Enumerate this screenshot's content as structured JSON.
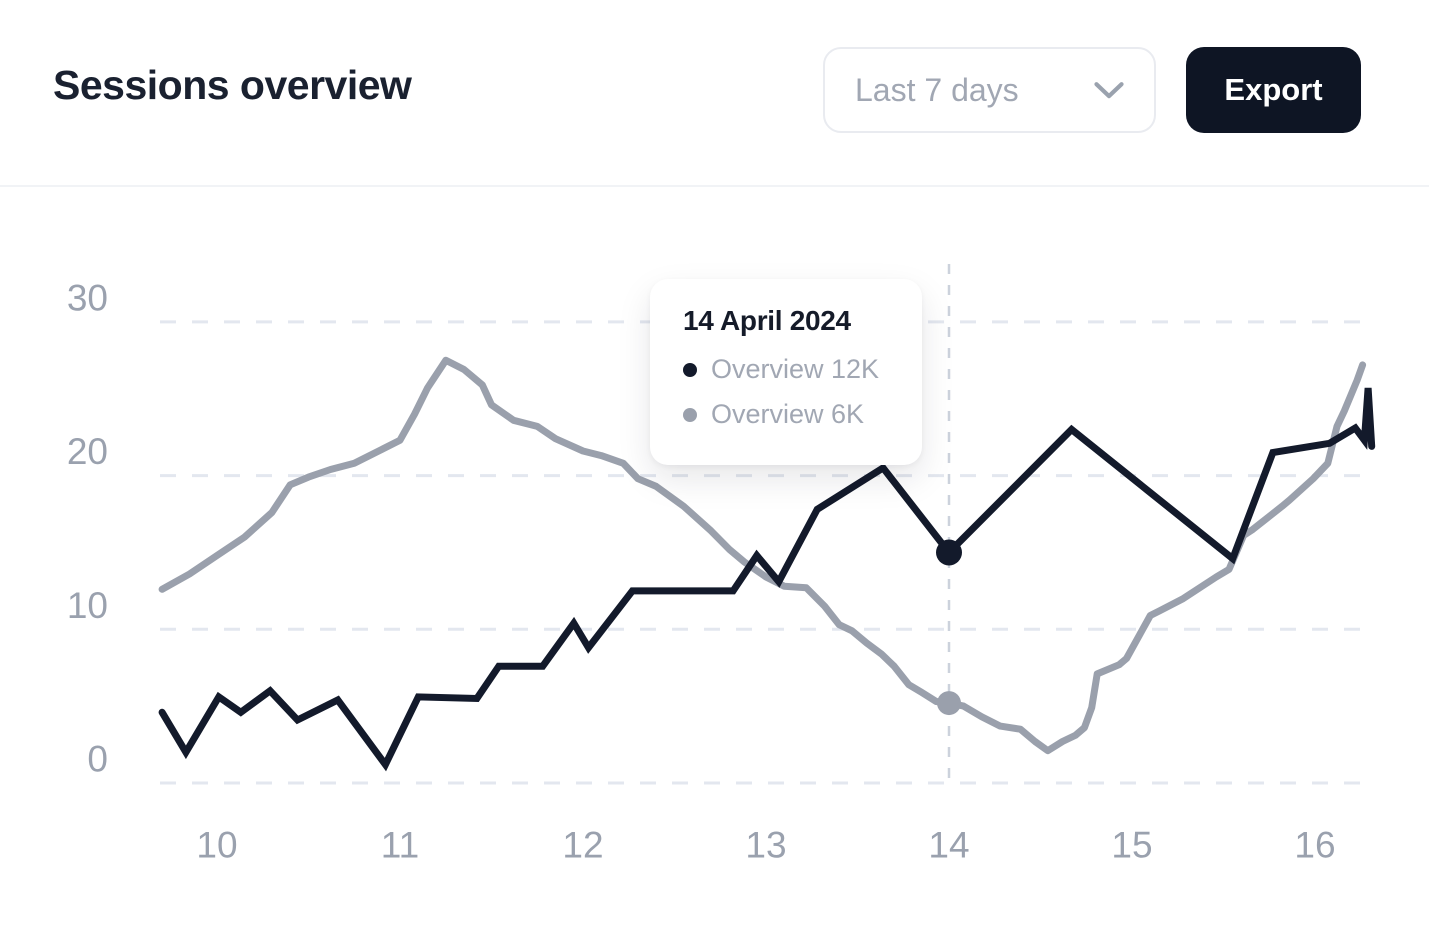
{
  "header": {
    "title": "Sessions overview",
    "range_selector": {
      "label": "Last 7 days"
    },
    "export_label": "Export"
  },
  "colors": {
    "title": "#1a2130",
    "dark-line": "#131a2b",
    "gray-line": "#9aa0ac",
    "gridline": "#e3e7ef",
    "axis-label": "#9aa1ae",
    "muted-text": "#a1a7b3",
    "export-bg": "#0e1524",
    "export-text": "#ffffff",
    "border": "#e9ebf0",
    "background": "#ffffff"
  },
  "chart_data": {
    "type": "line",
    "title": "Sessions overview",
    "xlabel": "",
    "ylabel": "",
    "grid": "horizontal-dashed",
    "x_axis": {
      "ticks": [
        10,
        11,
        12,
        13,
        14,
        15,
        16
      ],
      "range": [
        9.65,
        16.35
      ]
    },
    "y_axis": {
      "ticks": [
        0,
        10,
        20,
        30
      ],
      "range": [
        0,
        32
      ]
    },
    "legend": "none",
    "series": [
      {
        "name": "Overview 12K",
        "color": "#131a2b",
        "points": [
          [
            9.7,
            4.6
          ],
          [
            9.83,
            2.0
          ],
          [
            10.01,
            5.6
          ],
          [
            10.13,
            4.6
          ],
          [
            10.29,
            6.0
          ],
          [
            10.44,
            4.1
          ],
          [
            10.66,
            5.4
          ],
          [
            10.92,
            1.2
          ],
          [
            11.1,
            5.6
          ],
          [
            11.42,
            5.5
          ],
          [
            11.54,
            7.6
          ],
          [
            11.78,
            7.6
          ],
          [
            11.95,
            10.4
          ],
          [
            12.03,
            8.8
          ],
          [
            12.27,
            12.5
          ],
          [
            12.82,
            12.5
          ],
          [
            12.95,
            14.8
          ],
          [
            13.07,
            13.1
          ],
          [
            13.28,
            17.8
          ],
          [
            13.64,
            20.5
          ],
          [
            14.0,
            15.0
          ],
          [
            14.67,
            23.0
          ],
          [
            15.55,
            14.6
          ],
          [
            15.77,
            21.5
          ],
          [
            16.08,
            22.1
          ],
          [
            16.22,
            23.1
          ],
          [
            16.27,
            22.3
          ],
          [
            16.29,
            25.7
          ],
          [
            16.31,
            21.9
          ]
        ]
      },
      {
        "name": "Overview 6K",
        "color": "#9aa0ac",
        "points": [
          [
            9.7,
            12.6
          ],
          [
            9.85,
            13.6
          ],
          [
            10.0,
            14.8
          ],
          [
            10.15,
            16.0
          ],
          [
            10.3,
            17.6
          ],
          [
            10.4,
            19.4
          ],
          [
            10.5,
            19.9
          ],
          [
            10.62,
            20.4
          ],
          [
            10.75,
            20.8
          ],
          [
            10.9,
            21.7
          ],
          [
            11.0,
            22.3
          ],
          [
            11.08,
            24.0
          ],
          [
            11.15,
            25.7
          ],
          [
            11.25,
            27.5
          ],
          [
            11.35,
            26.9
          ],
          [
            11.45,
            25.9
          ],
          [
            11.5,
            24.6
          ],
          [
            11.62,
            23.6
          ],
          [
            11.75,
            23.2
          ],
          [
            11.85,
            22.4
          ],
          [
            12.0,
            21.6
          ],
          [
            12.1,
            21.3
          ],
          [
            12.22,
            20.8
          ],
          [
            12.3,
            19.8
          ],
          [
            12.4,
            19.3
          ],
          [
            12.55,
            18.0
          ],
          [
            12.7,
            16.4
          ],
          [
            12.8,
            15.2
          ],
          [
            12.88,
            14.4
          ],
          [
            13.0,
            13.4
          ],
          [
            13.1,
            12.8
          ],
          [
            13.22,
            12.7
          ],
          [
            13.32,
            11.5
          ],
          [
            13.4,
            10.3
          ],
          [
            13.47,
            9.9
          ],
          [
            13.55,
            9.1
          ],
          [
            13.63,
            8.4
          ],
          [
            13.7,
            7.6
          ],
          [
            13.78,
            6.4
          ],
          [
            13.85,
            5.9
          ],
          [
            13.93,
            5.3
          ],
          [
            14.0,
            5.2
          ],
          [
            14.08,
            5.0
          ],
          [
            14.18,
            4.3
          ],
          [
            14.28,
            3.7
          ],
          [
            14.39,
            3.5
          ],
          [
            14.47,
            2.7
          ],
          [
            14.54,
            2.1
          ],
          [
            14.62,
            2.7
          ],
          [
            14.69,
            3.1
          ],
          [
            14.74,
            3.6
          ],
          [
            14.78,
            4.9
          ],
          [
            14.81,
            7.1
          ],
          [
            14.93,
            7.7
          ],
          [
            14.97,
            8.1
          ],
          [
            15.1,
            10.9
          ],
          [
            15.15,
            11.2
          ],
          [
            15.28,
            12.0
          ],
          [
            15.46,
            13.4
          ],
          [
            15.53,
            13.9
          ],
          [
            15.61,
            16.1
          ],
          [
            15.66,
            16.5
          ],
          [
            15.82,
            18.0
          ],
          [
            15.86,
            18.4
          ],
          [
            15.99,
            19.8
          ],
          [
            16.07,
            20.8
          ],
          [
            16.12,
            23.2
          ],
          [
            16.16,
            24.2
          ],
          [
            16.23,
            26.2
          ],
          [
            16.26,
            27.2
          ]
        ]
      }
    ],
    "highlight": {
      "x": 14,
      "vline": true,
      "markers": [
        {
          "series_index": 0,
          "x": 14,
          "value": 15.0
        },
        {
          "series_index": 1,
          "x": 14,
          "value": 5.2
        }
      ]
    }
  },
  "tooltip": {
    "date": "14 April 2024",
    "rows": [
      {
        "label": "Overview 12K",
        "dot_color": "#131a2b"
      },
      {
        "label": "Overview 6K",
        "dot_color": "#9aa0ac"
      }
    ]
  }
}
